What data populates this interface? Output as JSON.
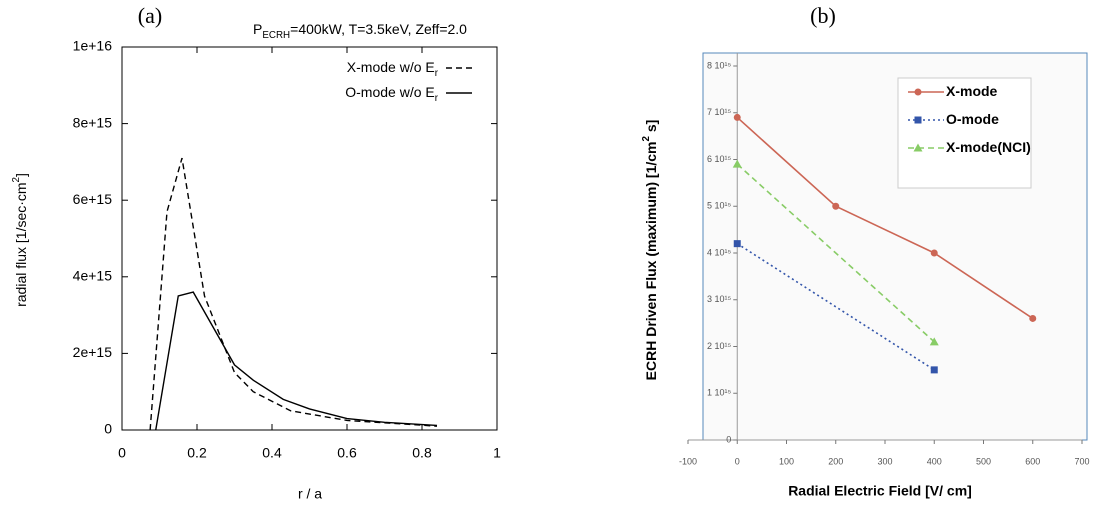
{
  "chart_data": [
    {
      "type": "line",
      "title": "(a)",
      "annotation": [
        "P",
        "ECRH",
        "=400kW, T=3.5keV, Zeff=2.0"
      ],
      "x_label": "r / a",
      "y_label": [
        "radial flux [1/sec·cm",
        "2",
        "]"
      ],
      "xlim": [
        0,
        1
      ],
      "xticks": [
        0,
        0.2,
        0.4,
        0.6,
        0.8,
        1
      ],
      "ylim": [
        0,
        1e+16
      ],
      "yticks": [
        0,
        {
          "value": 2000000000000000.0,
          "label": "2e+15"
        },
        {
          "value": 4000000000000000.0,
          "label": "4e+15"
        },
        {
          "value": 6000000000000000.0,
          "label": "6e+15"
        },
        {
          "value": 8000000000000000.0,
          "label": "8e+15"
        },
        {
          "value": 1e+16,
          "label": "1e+16"
        }
      ],
      "legend": "top-right",
      "series": [
        {
          "name": [
            "X-mode w/o E",
            "r"
          ],
          "color": "#000000",
          "dash": "dashed",
          "x": [
            0.075,
            0.12,
            0.16,
            0.22,
            0.3,
            0.35,
            0.45,
            0.6,
            0.84
          ],
          "values": [
            0,
            5700000000000000.0,
            7100000000000000.0,
            3500000000000000.0,
            1500000000000000.0,
            1000000000000000.0,
            500000000000000.0,
            250000000000000.0,
            100000000000000.0
          ]
        },
        {
          "name": [
            "O-mode w/o E",
            "r"
          ],
          "color": "#000000",
          "dash": "solid",
          "x": [
            0.09,
            0.15,
            0.19,
            0.3,
            0.35,
            0.43,
            0.5,
            0.6,
            0.7,
            0.84
          ],
          "values": [
            0,
            3500000000000000.0,
            3600000000000000.0,
            1700000000000000.0,
            1300000000000000.0,
            800000000000000.0,
            550000000000000.0,
            300000000000000.0,
            200000000000000.0,
            120000000000000.0
          ]
        }
      ]
    },
    {
      "type": "line",
      "title": "(b)",
      "x_label": "Radial Electric Field [V/ cm]",
      "y_label": [
        "ECRH Driven Flux (maximum) [1/cm",
        "2",
        " s]"
      ],
      "xlim": [
        -100,
        700
      ],
      "xticks": [
        -100,
        0,
        100,
        200,
        300,
        400,
        500,
        600,
        700
      ],
      "ylim": [
        0,
        8000000000000000.0
      ],
      "yticks": [
        0,
        {
          "value": 1000000000000000.0,
          "label": "1 10¹⁵"
        },
        {
          "value": 2000000000000000.0,
          "label": "2 10¹⁵"
        },
        {
          "value": 3000000000000000.0,
          "label": "3 10¹⁵"
        },
        {
          "value": 4000000000000000.0,
          "label": "4 10¹⁵"
        },
        {
          "value": 5000000000000000.0,
          "label": "5 10¹⁵"
        },
        {
          "value": 6000000000000000.0,
          "label": "6 10¹⁵"
        },
        {
          "value": 7000000000000000.0,
          "label": "7 10¹⁵"
        },
        {
          "value": 8000000000000000.0,
          "label": "8 10¹⁵"
        }
      ],
      "legend": "top-right",
      "series": [
        {
          "name": [
            "X-mode"
          ],
          "color": "#cc6655",
          "dash": "solid",
          "marker": "circle",
          "x": [
            0,
            200,
            400,
            600
          ],
          "values": [
            6900000000000000.0,
            5000000000000000.0,
            4000000000000000.0,
            2600000000000000.0
          ]
        },
        {
          "name": [
            "O-mode"
          ],
          "color": "#3355aa",
          "dash": "dotted",
          "marker": "square",
          "x": [
            0,
            400
          ],
          "values": [
            4200000000000000.0,
            1500000000000000.0
          ]
        },
        {
          "name": [
            "X-mode(NCI)"
          ],
          "color": "#88cc66",
          "dash": "dashed",
          "marker": "triangle",
          "x": [
            0,
            400
          ],
          "values": [
            5900000000000000.0,
            2100000000000000.0
          ]
        }
      ]
    }
  ]
}
